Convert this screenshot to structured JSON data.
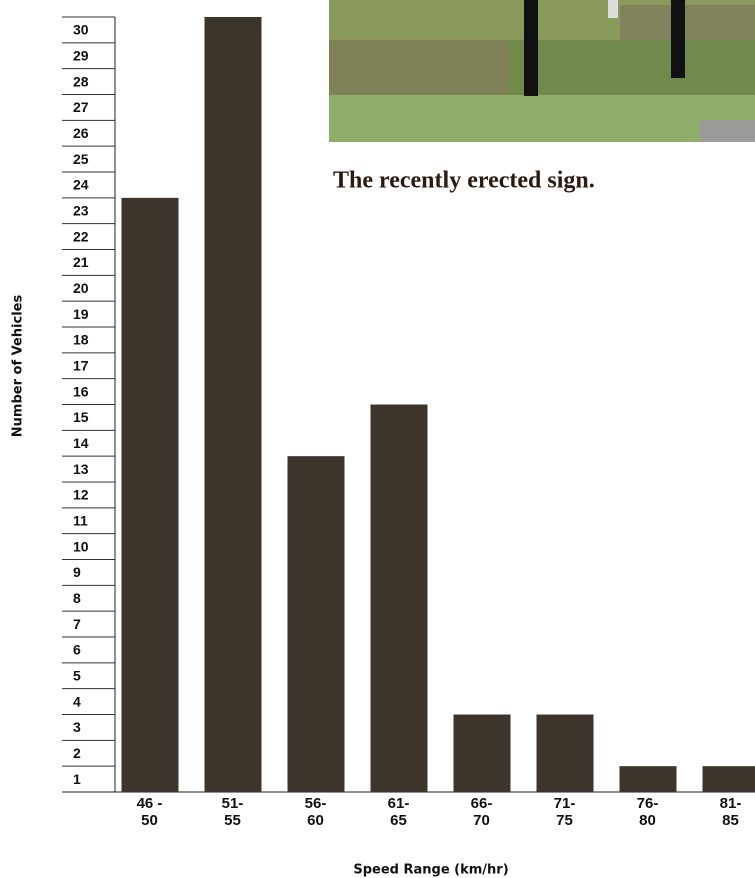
{
  "chart_data": {
    "type": "bar",
    "caption": "The recently erected sign.",
    "x_label": "Speed Range (km/hr)",
    "y_label": "Number of Vehicles",
    "categories": [
      "46 -\n50",
      "51-\n55",
      "56-\n60",
      "61-\n65",
      "66-\n70",
      "71-\n75",
      "76-\n80",
      "81-\n85"
    ],
    "values": [
      23,
      30,
      13,
      15,
      3,
      3,
      1,
      1
    ],
    "color": "#3d342b",
    "ylim": [
      0,
      30
    ],
    "yticks": [
      1,
      2,
      3,
      4,
      5,
      6,
      7,
      8,
      9,
      10,
      11,
      12,
      13,
      14,
      15,
      16,
      17,
      18,
      19,
      20,
      21,
      22,
      23,
      24,
      25,
      26,
      27,
      28,
      29,
      30
    ],
    "grid": true
  }
}
